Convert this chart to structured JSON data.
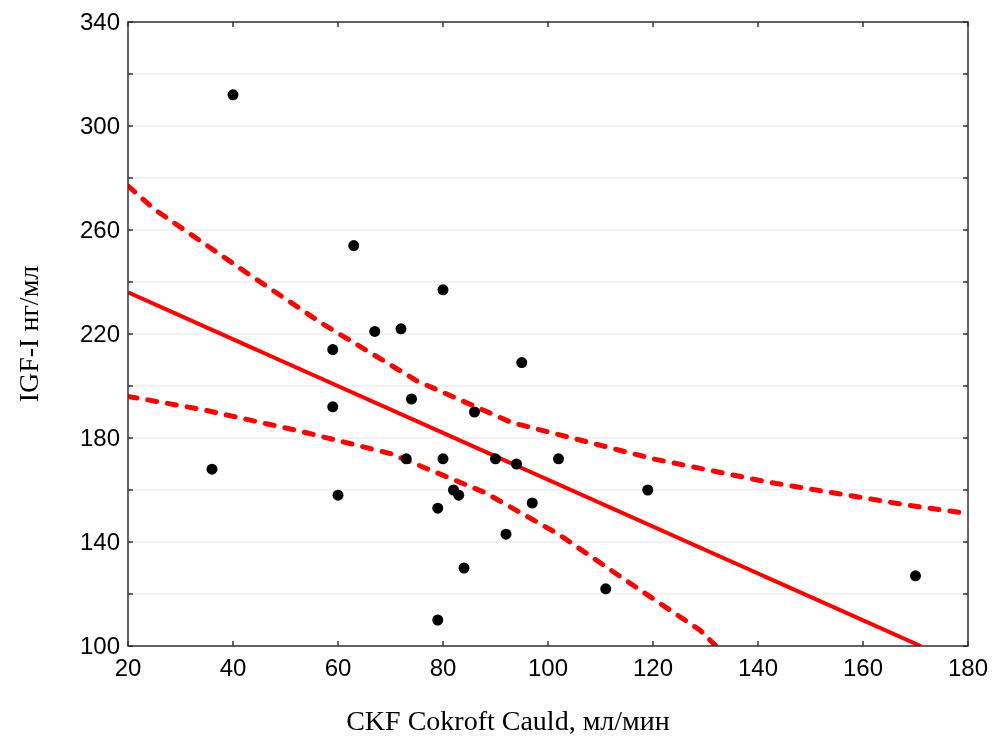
{
  "chart_data": {
    "type": "scatter",
    "xlabel": "CKF Cokroft Cauld, мл/мин",
    "ylabel": "IGF-I нг/мл",
    "xlim": [
      20,
      180
    ],
    "xticks": [
      20,
      40,
      60,
      80,
      100,
      120,
      140,
      160,
      180
    ],
    "ylim": [
      100,
      340
    ],
    "yticks": [
      100,
      {
        "value": 120,
        "label": null
      },
      140,
      {
        "value": 160,
        "label": null
      },
      180,
      {
        "value": 200,
        "label": null
      },
      220,
      {
        "value": 240,
        "label": null
      },
      260,
      {
        "value": 280,
        "label": null
      },
      300,
      {
        "value": 320,
        "label": null
      },
      340
    ],
    "grid": "y",
    "series": [
      {
        "color": "#000000",
        "marker": "circle",
        "x": [
          40,
          63,
          80,
          36,
          59,
          59,
          60,
          67,
          72,
          74,
          73,
          80,
          79,
          79,
          86,
          82,
          83,
          84,
          90,
          94,
          95,
          97,
          92,
          102,
          119,
          111,
          170
        ],
        "values": [
          312,
          254,
          237,
          168,
          214,
          192,
          158,
          221,
          222,
          195,
          172,
          172,
          110,
          153,
          190,
          160,
          158,
          130,
          172,
          170,
          209,
          155,
          143,
          172,
          160,
          122,
          127
        ]
      },
      {
        "type": "line",
        "color": "#ff0000",
        "line_style": "solid",
        "x": [
          20,
          171
        ],
        "values": [
          236,
          100
        ]
      },
      {
        "type": "line",
        "color": "#ff0000",
        "line_style": "dashed",
        "x": [
          20,
          25,
          43,
          57,
          75,
          93,
          120,
          142,
          169,
          180
        ],
        "values": [
          277,
          268,
          243,
          224,
          202,
          186,
          172,
          163,
          154,
          151
        ]
      },
      {
        "type": "line",
        "color": "#ff0000",
        "line_style": "dashed",
        "x": [
          20,
          34,
          52,
          70,
          88,
          102,
          115,
          129,
          132
        ],
        "values": [
          196,
          191,
          183,
          174,
          159,
          143,
          125,
          106,
          100
        ]
      }
    ]
  }
}
